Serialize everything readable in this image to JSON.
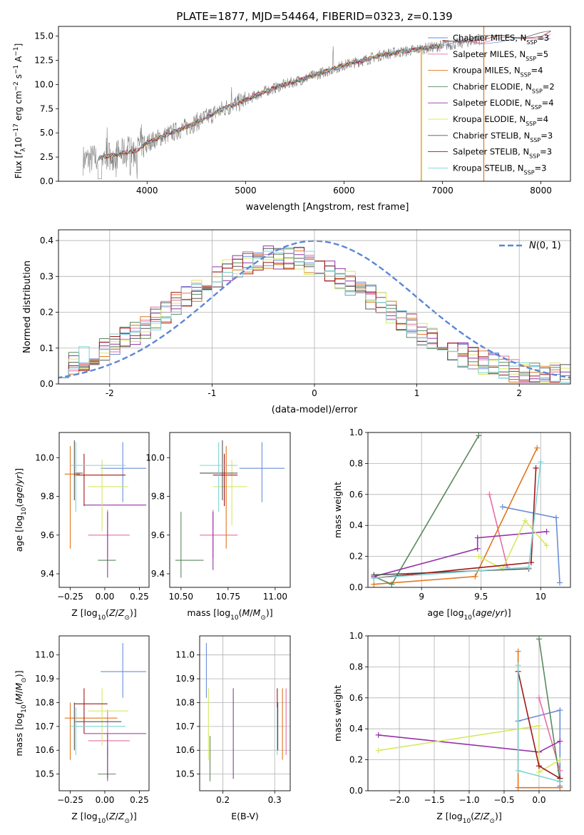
{
  "figure": {
    "title": "PLATE=1877, MJD=54464, FIBERID=0323, z=0.139"
  },
  "colors": {
    "spectrum": "#808080",
    "chabrier_miles": "#6a8fd8",
    "salpeter_miles": "#e66ea8",
    "kroupa_miles": "#e0761e",
    "chabrier_elodie": "#5b8a5e",
    "salpeter_elodie": "#9533a8",
    "kroupa_elodie": "#d8e860",
    "chabrier_stelib": "#555555",
    "salpeter_stelib": "#a01818",
    "kroupa_stelib": "#7ed3d6",
    "normal": "#5b86d6",
    "grid": "#b0b0b0"
  },
  "chart_data": [
    {
      "id": "spectrum",
      "type": "line",
      "title": "PLATE=1877, MJD=54464, FIBERID=0323, z=0.139",
      "xlabel": "wavelength [Angstrom, rest frame]",
      "ylabel": "Flux [fλ10⁻¹⁷ erg cm⁻² s⁻¹ A⁻¹]",
      "xlim": [
        3100,
        8300
      ],
      "ylim": [
        0,
        16
      ],
      "xticks": [
        4000,
        5000,
        6000,
        7000,
        8000
      ],
      "yticks": [
        0.0,
        2.5,
        5.0,
        7.5,
        10.0,
        12.5,
        15.0
      ],
      "grid": false,
      "legend": "top-right",
      "legend_entries": [
        {
          "label": "Chabrier MILES, N",
          "sub": "SSP",
          "suffix": "=3"
        },
        {
          "label": "Salpeter MILES, N",
          "sub": "SSP",
          "suffix": "=5"
        },
        {
          "label": "Kroupa MILES, N",
          "sub": "SSP",
          "suffix": "=4"
        },
        {
          "label": "Chabrier ELODIE, N",
          "sub": "SSP",
          "suffix": "=2"
        },
        {
          "label": "Salpeter ELODIE, N",
          "sub": "SSP",
          "suffix": "=4"
        },
        {
          "label": "Kroupa ELODIE, N",
          "sub": "SSP",
          "suffix": "=4"
        },
        {
          "label": "Chabrier STELIB, N",
          "sub": "SSP",
          "suffix": "=3"
        },
        {
          "label": "Salpeter STELIB, N",
          "sub": "SSP",
          "suffix": "=3"
        },
        {
          "label": "Kroupa STELIB, N",
          "sub": "SSP",
          "suffix": "=3"
        }
      ],
      "continuum": {
        "x": [
          3350,
          3500,
          3700,
          3900,
          4000,
          4200,
          4400,
          4600,
          4800,
          5000,
          5200,
          5400,
          5600,
          5800,
          6000,
          6200,
          6400,
          6600,
          6800,
          7000,
          7200,
          7400
        ],
        "y": [
          2.2,
          2.4,
          2.8,
          3.2,
          4.0,
          4.8,
          5.6,
          6.6,
          7.6,
          8.4,
          9.3,
          10.0,
          10.6,
          11.3,
          12.0,
          12.5,
          13.1,
          13.4,
          13.7,
          14.0,
          14.3,
          14.7
        ]
      },
      "model_lines": [
        {
          "x": [
            3500,
            7000
          ],
          "y": [
            0,
            13.8
          ],
          "note": "vertical dropouts at 6790 (Kroupa ELODIE) and 7420 (Kroupa MILES)"
        }
      ],
      "model_tail": {
        "x": [
          7000,
          7200,
          7400,
          7600,
          7800,
          8000,
          8100
        ],
        "y": [
          14.0,
          14.3,
          14.4,
          14.5,
          14.6,
          14.8,
          14.9
        ]
      },
      "vertical_drops": [
        6790,
        7420
      ]
    },
    {
      "id": "residuals",
      "type": "histogram",
      "xlabel": "(data-model)/error",
      "ylabel": "Normed distribution",
      "xlim": [
        -2.5,
        2.5
      ],
      "ylim": [
        0,
        0.43
      ],
      "xticks": [
        -2,
        -1,
        0,
        1,
        2
      ],
      "yticks": [
        0.0,
        0.1,
        0.2,
        0.3,
        0.4
      ],
      "grid": true,
      "legend": "top-right",
      "legend_entries": [
        "N(0,1)"
      ],
      "bin_width": 0.1,
      "bin_start": -2.5,
      "base_values": [
        0.04,
        0.05,
        0.05,
        0.06,
        0.07,
        0.08,
        0.1,
        0.13,
        0.15,
        0.16,
        0.17,
        0.19,
        0.21,
        0.22,
        0.24,
        0.26,
        0.27,
        0.29,
        0.3,
        0.31,
        0.32,
        0.32,
        0.33,
        0.33,
        0.34,
        0.34,
        0.34,
        0.34,
        0.33,
        0.33,
        0.32,
        0.32,
        0.31,
        0.31,
        0.3,
        0.29,
        0.28,
        0.27,
        0.25,
        0.24,
        0.22,
        0.21,
        0.2,
        0.19,
        0.17,
        0.16,
        0.15,
        0.14,
        0.13,
        0.12,
        0.11,
        0.1,
        0.09,
        0.08,
        0.07,
        0.07,
        0.06,
        0.05,
        0.05,
        0.04,
        0.04,
        0.04,
        0.03,
        0.03,
        0.03,
        0.03,
        0.02,
        0.02,
        0.02,
        0.02,
        0.02,
        0.02,
        0.02,
        0.02,
        0.02,
        0.02,
        0.02,
        0.02,
        0.02,
        0.02,
        0.02,
        0.02,
        0.02,
        0.02,
        0.02,
        0.02,
        0.02,
        0.02,
        0.02,
        0.02,
        0.02,
        0.02,
        0.02,
        0.02,
        0.02,
        0.02,
        0.02,
        0.02,
        0.02,
        0.02
      ],
      "normal": {
        "mu": 0,
        "sigma": 1
      }
    },
    {
      "id": "age_vs_Z",
      "type": "errorbar",
      "xlabel": "Z [log10(Z/Z⊙)]",
      "ylabel": "age  [log10(age/yr)]",
      "xlim": [
        -0.33,
        0.32
      ],
      "ylim": [
        9.33,
        10.13
      ],
      "xticks": [
        -0.25,
        0.0,
        0.25
      ],
      "xticklabels": [
        "−0.25",
        "0.00",
        "0.25"
      ],
      "yticks": [
        9.4,
        9.6,
        9.8,
        10.0
      ],
      "grid": false
    },
    {
      "id": "age_vs_mass",
      "type": "errorbar",
      "xlabel": "mass [log10(M/M⊙)]",
      "xlim": [
        10.44,
        11.08
      ],
      "ylim": [
        9.33,
        10.13
      ],
      "xticks": [
        10.5,
        10.75,
        11.0
      ],
      "xticklabels": [
        "10.50",
        "10.75",
        "11.00"
      ],
      "yticks": [
        9.4,
        9.6,
        9.8,
        10.0
      ],
      "grid": false
    },
    {
      "id": "massweight_vs_age",
      "type": "line",
      "xlabel": "age  [log10(age/yr)]",
      "ylabel": "mass weight",
      "xlim": [
        8.55,
        10.25
      ],
      "ylim": [
        0,
        1
      ],
      "xticks": [
        9.0,
        9.5,
        10.0
      ],
      "yticks": [
        0.0,
        0.2,
        0.4,
        0.6,
        0.8,
        1.0
      ],
      "grid": true
    },
    {
      "id": "mass_vs_Z",
      "type": "errorbar",
      "xlabel": "Z [log10(Z/Z⊙)]",
      "ylabel": "mass [log10(M/M⊙)]",
      "xlim": [
        -0.33,
        0.32
      ],
      "ylim": [
        10.43,
        11.08
      ],
      "xticks": [
        -0.25,
        0.0,
        0.25
      ],
      "xticklabels": [
        "−0.25",
        "0.00",
        "0.25"
      ],
      "yticks": [
        10.5,
        10.6,
        10.7,
        10.8,
        10.9,
        11.0
      ],
      "grid": false
    },
    {
      "id": "mass_vs_ebv",
      "type": "errorbar",
      "xlabel": "E(B-V)",
      "xlim": [
        0.155,
        0.33
      ],
      "ylim": [
        10.43,
        11.08
      ],
      "xticks": [
        0.2,
        0.3
      ],
      "yticks": [
        10.5,
        10.6,
        10.7,
        10.8,
        10.9,
        11.0
      ],
      "grid": true
    },
    {
      "id": "massweight_vs_Z",
      "type": "line",
      "xlabel": "Z [log10(Z/Z⊙)]",
      "ylabel": "mass weight",
      "xlim": [
        -2.45,
        0.45
      ],
      "ylim": [
        0,
        1
      ],
      "xticks": [
        -2.0,
        -1.5,
        -1.0,
        -0.5,
        0.0
      ],
      "xticklabels": [
        "−2.0",
        "−1.5",
        "−1.0",
        "−0.5",
        "0.0"
      ],
      "yticks": [
        0.0,
        0.2,
        0.4,
        0.6,
        0.8,
        1.0
      ],
      "grid": true
    }
  ],
  "fits": [
    {
      "name": "Chabrier MILES",
      "color": "chabrier_miles",
      "Z": [
        0.13,
        0.3
      ],
      "age": [
        9.75,
        10.08
      ],
      "Zerr_x": [
        -0.03,
        0.3
      ],
      "age_y": 9.945,
      "mass": [
        10.93,
        11.05
      ],
      "mass_err": [
        10.82,
        11.05
      ],
      "ebv": 0.168,
      "weights_age": [
        [
          9.68,
          0.52
        ],
        [
          10.13,
          0.45
        ],
        [
          10.16,
          0.03
        ]
      ],
      "weights_Z": [
        [
          -0.3,
          0.45
        ],
        [
          0.3,
          0.52
        ],
        [
          0.3,
          0.03
        ]
      ]
    },
    {
      "name": "Salpeter MILES",
      "color": "salpeter_miles",
      "Z": [
        -0.12,
        0.18
      ],
      "age_y": 9.6,
      "age_err": [
        9.47,
        9.73
      ],
      "massx": 10.65,
      "mass_y": 10.64,
      "ebv": 0.32,
      "weights_age": [
        [
          9.57,
          0.6
        ],
        [
          9.72,
          0.13
        ]
      ],
      "weights_Z": [
        [
          0.0,
          0.6
        ],
        [
          0.3,
          0.13
        ]
      ]
    },
    {
      "name": "Kroupa MILES",
      "color": "kroupa_miles",
      "weights_age": [
        [
          8.6,
          0.02
        ],
        [
          9.45,
          0.07
        ],
        [
          9.97,
          0.9
        ]
      ],
      "weights_Z": [
        [
          -0.3,
          0.9
        ],
        [
          -0.3,
          0.02
        ],
        [
          0.3,
          0.02
        ]
      ]
    },
    {
      "name": "Chabrier ELODIE",
      "color": "chabrier_elodie",
      "weights_age": [
        [
          8.6,
          0.07
        ],
        [
          8.75,
          0.02
        ],
        [
          9.48,
          0.98
        ]
      ],
      "weights_Z": [
        [
          0.0,
          0.98
        ],
        [
          0.3,
          0.06
        ]
      ]
    },
    {
      "name": "Salpeter ELODIE",
      "color": "salpeter_elodie",
      "weights_age": [
        [
          8.6,
          0.07
        ],
        [
          9.47,
          0.25
        ],
        [
          9.47,
          0.32
        ],
        [
          10.05,
          0.36
        ]
      ],
      "weights_Z": [
        [
          -2.3,
          0.36
        ],
        [
          0.0,
          0.25
        ],
        [
          0.3,
          0.32
        ]
      ]
    },
    {
      "name": "Kroupa ELODIE",
      "color": "kroupa_elodie",
      "weights_age": [
        [
          9.48,
          0.2
        ],
        [
          9.68,
          0.12
        ],
        [
          9.87,
          0.43
        ],
        [
          10.05,
          0.27
        ]
      ],
      "weights_Z": [
        [
          -2.3,
          0.26
        ],
        [
          0.0,
          0.42
        ],
        [
          0.0,
          0.12
        ],
        [
          0.3,
          0.2
        ]
      ]
    },
    {
      "name": "Chabrier STELIB",
      "color": "chabrier_stelib",
      "weights_age": [
        [
          8.6,
          0.08
        ],
        [
          9.9,
          0.12
        ]
      ],
      "weights_Z": [
        [
          0.3,
          0.06
        ],
        [
          0.3,
          0.08
        ]
      ]
    },
    {
      "name": "Salpeter STELIB",
      "color": "salpeter_stelib",
      "weights_age": [
        [
          8.6,
          0.06
        ],
        [
          9.92,
          0.16
        ],
        [
          9.96,
          0.77
        ]
      ],
      "weights_Z": [
        [
          -0.3,
          0.77
        ],
        [
          0.0,
          0.16
        ],
        [
          0.3,
          0.08
        ]
      ]
    },
    {
      "name": "Kroupa STELIB",
      "color": "kroupa_stelib",
      "weights_age": [
        [
          8.6,
          0.06
        ],
        [
          9.9,
          0.13
        ],
        [
          10.0,
          0.81
        ]
      ],
      "weights_Z": [
        [
          -0.3,
          0.81
        ],
        [
          -0.3,
          0.13
        ],
        [
          0.3,
          0.06
        ]
      ]
    }
  ],
  "errorbars_ageZ": [
    {
      "c": "chabrier_miles",
      "x": 0.13,
      "y": 9.945,
      "x0": -0.03,
      "x1": 0.3,
      "y0": 9.77,
      "y1": 10.08
    },
    {
      "c": "salpeter_miles",
      "x": 0.02,
      "y": 9.6,
      "x0": -0.12,
      "x1": 0.18,
      "y0": 9.48,
      "y1": 9.73
    },
    {
      "c": "kroupa_miles",
      "x": -0.25,
      "y": 9.915,
      "x0": -0.29,
      "x1": -0.18,
      "y0": 9.53,
      "y1": 10.06
    },
    {
      "c": "chabrier_elodie",
      "x": 0.02,
      "y": 9.47,
      "x0": -0.05,
      "x1": 0.08,
      "y0": 9.47,
      "y1": 9.47
    },
    {
      "c": "salpeter_elodie",
      "x": 0.02,
      "y": 9.755,
      "x0": -0.15,
      "x1": 0.3,
      "y0": 9.38,
      "y1": 9.72
    },
    {
      "c": "kroupa_elodie",
      "x": -0.02,
      "y": 9.85,
      "x0": -0.12,
      "x1": 0.17,
      "y0": 9.62,
      "y1": 9.99
    },
    {
      "c": "chabrier_stelib",
      "x": -0.22,
      "y": 9.92,
      "x0": -0.22,
      "x1": -0.16,
      "y0": 9.78,
      "y1": 10.09
    },
    {
      "c": "salpeter_stelib",
      "x": -0.15,
      "y": 9.91,
      "x0": -0.22,
      "x1": 0.15,
      "y0": 9.75,
      "y1": 10.02
    },
    {
      "c": "kroupa_stelib",
      "x": -0.21,
      "y": 9.96,
      "x0": -0.25,
      "x1": 0.15,
      "y0": 9.72,
      "y1": 10.08
    }
  ],
  "errorbars_ageMass": [
    {
      "c": "chabrier_miles",
      "x": 10.93,
      "y": 9.945,
      "x0": 10.81,
      "x1": 11.05,
      "y0": 9.77,
      "y1": 10.08
    },
    {
      "c": "salpeter_miles",
      "x": 10.67,
      "y": 9.6,
      "x0": 10.6,
      "x1": 10.8,
      "y0": 9.48,
      "y1": 9.73
    },
    {
      "c": "chabrier_elodie",
      "x": 10.5,
      "y": 9.47,
      "x0": 10.47,
      "x1": 10.62,
      "y0": 9.38,
      "y1": 9.72
    },
    {
      "c": "salpeter_elodie",
      "x": 10.67,
      "y": 9.755,
      "x0": 10.67,
      "x1": 10.67,
      "y0": 9.42,
      "y1": 9.72
    },
    {
      "c": "kroupa_elodie",
      "x": 10.77,
      "y": 9.85,
      "x0": 10.67,
      "x1": 10.85,
      "y0": 9.65,
      "y1": 9.99
    },
    {
      "c": "chabrier_stelib",
      "x": 10.72,
      "y": 9.92,
      "x0": 10.6,
      "x1": 10.8,
      "y0": 9.78,
      "y1": 10.09
    },
    {
      "c": "salpeter_stelib",
      "x": 10.73,
      "y": 9.91,
      "x0": 10.67,
      "x1": 10.8,
      "y0": 9.75,
      "y1": 10.02
    },
    {
      "c": "kroupa_stelib",
      "x": 10.7,
      "y": 9.96,
      "x0": 10.6,
      "x1": 10.8,
      "y0": 9.72,
      "y1": 10.08
    },
    {
      "c": "kroupa_miles",
      "x": 10.74,
      "y": 9.915,
      "x0": 10.74,
      "x1": 10.74,
      "y0": 9.53,
      "y1": 10.06
    }
  ],
  "errorbars_massZ": [
    {
      "c": "chabrier_miles",
      "x": 0.13,
      "y": 10.93,
      "x0": -0.03,
      "x1": 0.3,
      "y0": 10.82,
      "y1": 11.05
    },
    {
      "c": "salpeter_miles",
      "x": 0.02,
      "y": 10.64,
      "x0": -0.12,
      "x1": 0.18,
      "y0": 10.58,
      "y1": 10.77
    },
    {
      "c": "kroupa_miles",
      "x": -0.25,
      "y": 10.735,
      "x0": -0.29,
      "x1": 0.09,
      "y0": 10.56,
      "y1": 10.8
    },
    {
      "c": "chabrier_elodie",
      "x": 0.02,
      "y": 10.5,
      "x0": -0.05,
      "x1": 0.08,
      "y0": 10.47,
      "y1": 10.62
    },
    {
      "c": "salpeter_elodie",
      "x": 0.02,
      "y": 10.67,
      "x0": -0.15,
      "x1": 0.3,
      "y0": 10.48,
      "y1": 10.67
    },
    {
      "c": "kroupa_elodie",
      "x": -0.02,
      "y": 10.765,
      "x0": -0.12,
      "x1": 0.17,
      "y0": 10.62,
      "y1": 10.86
    },
    {
      "c": "chabrier_stelib",
      "x": -0.22,
      "y": 10.72,
      "x0": -0.22,
      "x1": 0.12,
      "y0": 10.6,
      "y1": 10.8
    },
    {
      "c": "salpeter_stelib",
      "x": -0.15,
      "y": 10.795,
      "x0": -0.22,
      "x1": 0.02,
      "y0": 10.67,
      "y1": 10.86
    },
    {
      "c": "kroupa_stelib",
      "x": -0.21,
      "y": 10.7,
      "x0": -0.25,
      "x1": 0.15,
      "y0": 10.58,
      "y1": 10.78
    }
  ],
  "errorbars_massEbv": [
    {
      "c": "chabrier_miles",
      "x": 0.168,
      "y": 10.93,
      "y0": 10.82,
      "y1": 11.05
    },
    {
      "c": "kroupa_elodie",
      "x": 0.172,
      "y": 10.77,
      "y0": 10.56,
      "y1": 10.86
    },
    {
      "c": "chabrier_elodie",
      "x": 0.175,
      "y": 10.57,
      "y0": 10.47,
      "y1": 10.66
    },
    {
      "c": "salpeter_elodie",
      "x": 0.22,
      "y": 10.67,
      "y0": 10.48,
      "y1": 10.86
    },
    {
      "c": "salpeter_stelib",
      "x": 0.305,
      "y": 10.72,
      "y0": 10.6,
      "y1": 10.86
    },
    {
      "c": "kroupa_stelib",
      "x": 0.305,
      "y": 10.7,
      "y0": 10.58,
      "y1": 10.78
    },
    {
      "c": "chabrier_stelib",
      "x": 0.306,
      "y": 10.72,
      "y0": 10.6,
      "y1": 10.8
    },
    {
      "c": "kroupa_miles",
      "x": 0.315,
      "y": 10.74,
      "y0": 10.56,
      "y1": 10.86
    },
    {
      "c": "salpeter_miles",
      "x": 0.322,
      "y": 10.64,
      "y0": 10.58,
      "y1": 10.86
    }
  ]
}
